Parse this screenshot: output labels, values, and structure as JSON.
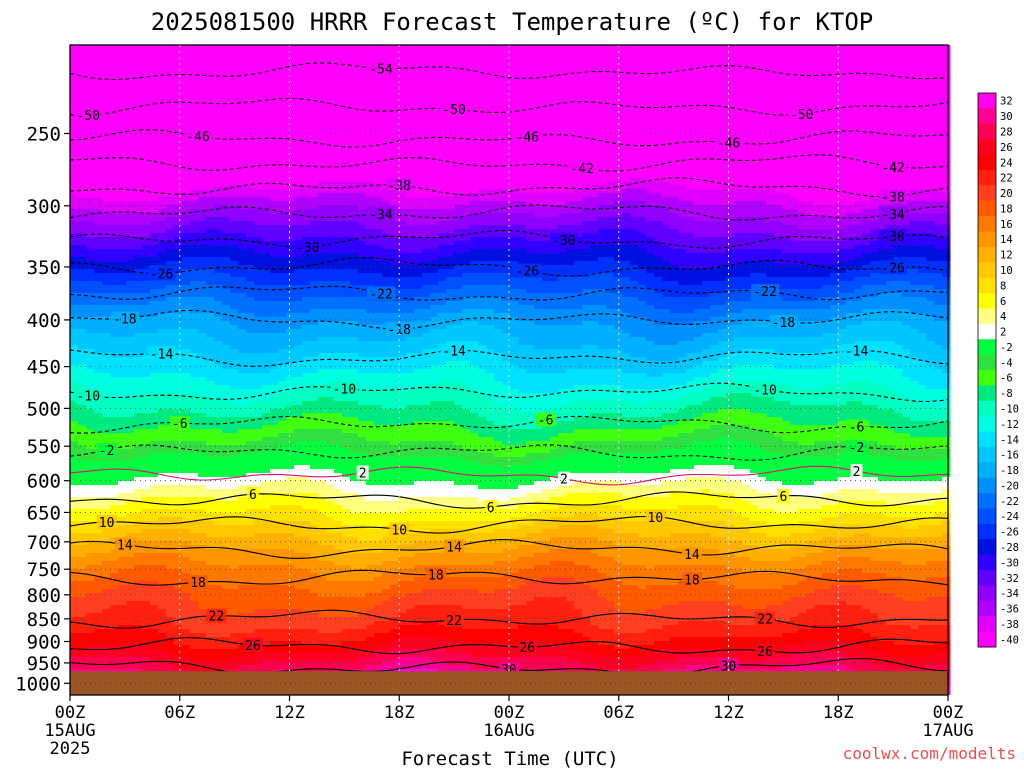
{
  "chart_data": {
    "type": "heatmap",
    "title": "2025081500 HRRR Forecast Temperature (ºC) for KTOP",
    "xlabel": "Forecast Time (UTC)",
    "ylabel": "",
    "credit": "coolwx.com/modelts",
    "x_ticks": [
      {
        "hour": 0,
        "label": "00Z",
        "sub1": "15AUG",
        "sub2": "2025"
      },
      {
        "hour": 6,
        "label": "06Z",
        "sub1": "",
        "sub2": ""
      },
      {
        "hour": 12,
        "label": "12Z",
        "sub1": "",
        "sub2": ""
      },
      {
        "hour": 18,
        "label": "18Z",
        "sub1": "",
        "sub2": ""
      },
      {
        "hour": 24,
        "label": "00Z",
        "sub1": "16AUG",
        "sub2": ""
      },
      {
        "hour": 30,
        "label": "06Z",
        "sub1": "",
        "sub2": ""
      },
      {
        "hour": 36,
        "label": "12Z",
        "sub1": "",
        "sub2": ""
      },
      {
        "hour": 42,
        "label": "18Z",
        "sub1": "",
        "sub2": ""
      },
      {
        "hour": 48,
        "label": "00Z",
        "sub1": "17AUG",
        "sub2": ""
      }
    ],
    "xlim_hours": [
      0,
      48
    ],
    "y_ticks": [
      {
        "p": 250,
        "label": "250"
      },
      {
        "p": 300,
        "label": "300"
      },
      {
        "p": 350,
        "label": "350"
      },
      {
        "p": 400,
        "label": "400"
      },
      {
        "p": 450,
        "label": "450"
      },
      {
        "p": 500,
        "label": "500"
      },
      {
        "p": 550,
        "label": "550"
      },
      {
        "p": 600,
        "label": "600"
      },
      {
        "p": 650,
        "label": "650"
      },
      {
        "p": 700,
        "label": "700"
      },
      {
        "p": 750,
        "label": "750"
      },
      {
        "p": 800,
        "label": "800"
      },
      {
        "p": 850,
        "label": "850"
      },
      {
        "p": 900,
        "label": "900"
      },
      {
        "p": 950,
        "label": "950"
      },
      {
        "p": 1000,
        "label": "1000"
      }
    ],
    "ylim_hpa": [
      200,
      1030
    ],
    "y_scale": "log-pressure",
    "surface_pressure_hpa": 970,
    "grid": true,
    "profile": [
      {
        "p": 200,
        "t": -57
      },
      {
        "p": 250,
        "t": -47
      },
      {
        "p": 300,
        "t": -35
      },
      {
        "p": 350,
        "t": -26
      },
      {
        "p": 400,
        "t": -18
      },
      {
        "p": 450,
        "t": -13
      },
      {
        "p": 500,
        "t": -8
      },
      {
        "p": 550,
        "t": -3
      },
      {
        "p": 600,
        "t": 3
      },
      {
        "p": 650,
        "t": 8
      },
      {
        "p": 700,
        "t": 13
      },
      {
        "p": 750,
        "t": 17
      },
      {
        "p": 800,
        "t": 20
      },
      {
        "p": 850,
        "t": 22
      },
      {
        "p": 900,
        "t": 25
      },
      {
        "p": 950,
        "t": 29
      },
      {
        "p": 1000,
        "t": 33
      }
    ],
    "contours": [
      {
        "value": -54,
        "style": "dashed",
        "label_hours": [
          17
        ]
      },
      {
        "value": -50,
        "style": "dashed",
        "label_hours": [
          1,
          21,
          40
        ]
      },
      {
        "value": -46,
        "style": "dashed",
        "label_hours": [
          7,
          25,
          36
        ]
      },
      {
        "value": -42,
        "style": "dashed",
        "label_hours": [
          28,
          45
        ]
      },
      {
        "value": -38,
        "style": "dashed",
        "label_hours": [
          18,
          45
        ]
      },
      {
        "value": -34,
        "style": "dashed",
        "label_hours": [
          17,
          45
        ]
      },
      {
        "value": -30,
        "style": "dashed",
        "label_hours": [
          13,
          27,
          45
        ]
      },
      {
        "value": -26,
        "style": "dashed",
        "label_hours": [
          5,
          25,
          45
        ]
      },
      {
        "value": -22,
        "style": "dashed",
        "label_hours": [
          17,
          38
        ]
      },
      {
        "value": -18,
        "style": "dashed",
        "label_hours": [
          3,
          18,
          39
        ]
      },
      {
        "value": -14,
        "style": "dashed",
        "label_hours": [
          5,
          21,
          43
        ]
      },
      {
        "value": -10,
        "style": "dashed",
        "label_hours": [
          1,
          15,
          38
        ]
      },
      {
        "value": -6,
        "style": "dashed",
        "label_hours": [
          6,
          26,
          43
        ]
      },
      {
        "value": -2,
        "style": "dashed",
        "label_hours": [
          2,
          43
        ]
      },
      {
        "value": 2,
        "style": "solid-magenta",
        "label_hours": [
          16,
          27,
          43
        ]
      },
      {
        "value": 6,
        "style": "solid",
        "label_hours": [
          10,
          23,
          39
        ]
      },
      {
        "value": 10,
        "style": "solid",
        "label_hours": [
          2,
          18,
          32
        ]
      },
      {
        "value": 14,
        "style": "solid",
        "label_hours": [
          3,
          21,
          34
        ]
      },
      {
        "value": 18,
        "style": "solid",
        "label_hours": [
          7,
          20,
          34
        ]
      },
      {
        "value": 22,
        "style": "solid",
        "label_hours": [
          8,
          21,
          38
        ]
      },
      {
        "value": 26,
        "style": "solid",
        "label_hours": [
          10,
          25,
          38
        ]
      },
      {
        "value": 30,
        "style": "solid",
        "label_hours": [
          24,
          36
        ]
      }
    ],
    "colorbar": {
      "labels": [
        "32",
        "30",
        "28",
        "26",
        "24",
        "22",
        "20",
        "18",
        "16",
        "14",
        "12",
        "10",
        "8",
        "6",
        "4",
        "2",
        "-2",
        "-4",
        "-6",
        "-8",
        "-10",
        "-12",
        "-14",
        "-16",
        "-18",
        "-20",
        "-22",
        "-24",
        "-26",
        "-28",
        "-30",
        "-32",
        "-34",
        "-36",
        "-38",
        "-40"
      ],
      "colors": [
        "#ff00f0",
        "#ff0090",
        "#ff0050",
        "#ff0020",
        "#ff0000",
        "#ff2010",
        "#ff4020",
        "#ff5a00",
        "#ff7800",
        "#ff9600",
        "#ffb000",
        "#ffc800",
        "#ffe000",
        "#ffff00",
        "#ffff80",
        "#ffffff",
        "#00ff40",
        "#30e040",
        "#40ff10",
        "#00e880",
        "#00ffc0",
        "#00ffe0",
        "#00e0ff",
        "#00c8ff",
        "#00b0ff",
        "#0090ff",
        "#0070ff",
        "#0050ff",
        "#0030ff",
        "#0010e0",
        "#3000ff",
        "#6000ff",
        "#9000ff",
        "#b000ff",
        "#e000ff",
        "#ff00ff"
      ]
    }
  }
}
